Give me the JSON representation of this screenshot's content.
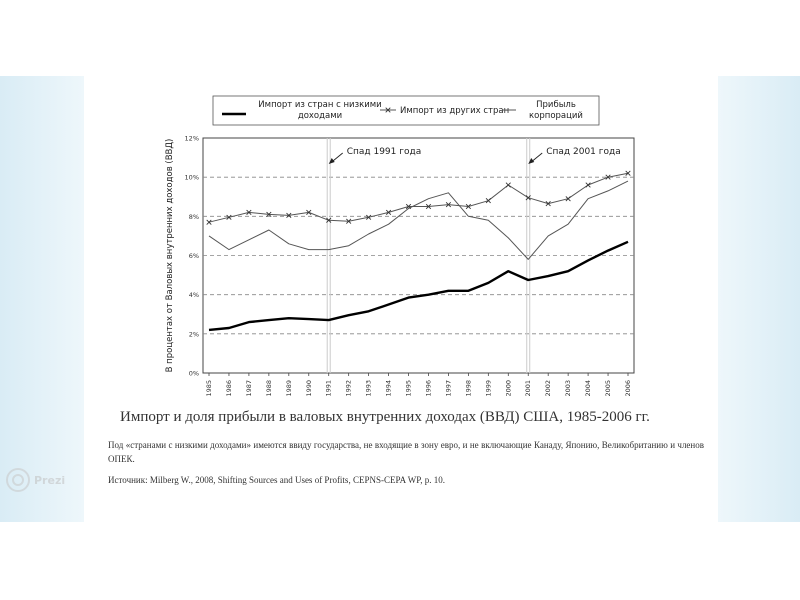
{
  "app": {
    "badge_label": "Prezi"
  },
  "slide": {
    "caption": "Импорт и доля прибыли в валовых внутренних доходах (ВВД) США, 1985-2006 гг.",
    "note": "Под «странами с низкими доходами» имеются ввиду государства, не входящие в зону евро, и не включающие Канаду, Японию, Великобританию и членов ОПЕК.",
    "source": "Источник: Milberg W., 2008, Shifting Sources and Uses of Profits, CEPNS-CEPA WP, p. 10."
  },
  "chart_data": {
    "type": "line",
    "title": "",
    "xlabel": "",
    "ylabel": "В процентах от Валовых внутренних доходов (ВВД)",
    "x": [
      1985,
      1986,
      1987,
      1988,
      1989,
      1990,
      1991,
      1992,
      1993,
      1994,
      1995,
      1996,
      1997,
      1998,
      1999,
      2000,
      2001,
      2002,
      2003,
      2004,
      2005,
      2006
    ],
    "x_tick_labels": [
      "1985",
      "1986",
      "1987",
      "1988",
      "1989",
      "1990",
      "1991",
      "1992",
      "1993",
      "1994",
      "1995",
      "1996",
      "1997",
      "1998",
      "1999",
      "2000",
      "2001",
      "2002",
      "2003",
      "2004",
      "2005",
      "2006"
    ],
    "ylim": [
      0,
      12
    ],
    "y_ticks": [
      0,
      2,
      4,
      6,
      8,
      10,
      12
    ],
    "y_tick_labels": [
      "0%",
      "2%",
      "4%",
      "6%",
      "8%",
      "10%",
      "12%"
    ],
    "grid": "horizontal-dashed",
    "legend_position": "top",
    "series": [
      {
        "name": "Импорт из стран с низкими доходами",
        "legend_lines": [
          "Импорт из стран с низкими",
          "доходами"
        ],
        "style": "thick",
        "color": "#000000",
        "values": [
          2.2,
          2.3,
          2.6,
          2.7,
          2.8,
          2.75,
          2.7,
          2.95,
          3.15,
          3.5,
          3.85,
          4.0,
          4.2,
          4.2,
          4.6,
          5.2,
          4.75,
          4.95,
          5.2,
          5.75,
          6.25,
          6.7
        ]
      },
      {
        "name": "Импорт из других стран",
        "legend_lines": [
          "Импорт из других стран"
        ],
        "style": "cross-markers",
        "color": "#555555",
        "values": [
          7.7,
          7.95,
          8.2,
          8.1,
          8.05,
          8.2,
          7.8,
          7.75,
          7.95,
          8.2,
          8.5,
          8.5,
          8.6,
          8.5,
          8.8,
          9.6,
          8.95,
          8.65,
          8.9,
          9.6,
          10.0,
          10.2
        ]
      },
      {
        "name": "Прибыль корпораций",
        "legend_lines": [
          "Прибыль",
          "корпораций"
        ],
        "style": "thin",
        "color": "#555555",
        "values": [
          7.0,
          6.3,
          6.8,
          7.3,
          6.6,
          6.3,
          6.3,
          6.5,
          7.1,
          7.6,
          8.4,
          8.9,
          9.2,
          8.0,
          7.8,
          6.9,
          5.8,
          7.0,
          7.6,
          8.9,
          9.3,
          9.8
        ]
      }
    ],
    "annotations": [
      {
        "label": "Спад 1991 года",
        "x": 1991
      },
      {
        "label": "Спад 2001 года",
        "x": 2001
      }
    ]
  }
}
